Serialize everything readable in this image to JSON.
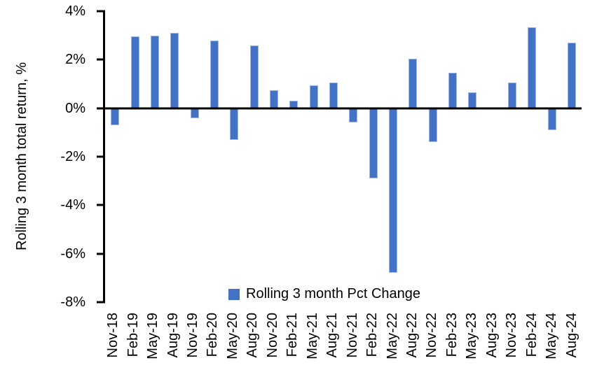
{
  "chart_data": {
    "type": "bar",
    "title": "",
    "xlabel": "",
    "ylabel": "Rolling 3 month total return, %",
    "categories": [
      "Nov-18",
      "Feb-19",
      "May-19",
      "Aug-19",
      "Nov-19",
      "Feb-20",
      "May-20",
      "Aug-20",
      "Nov-20",
      "Feb-21",
      "May-21",
      "Aug-21",
      "Nov-21",
      "Feb-22",
      "May-22",
      "Aug-22",
      "Nov-22",
      "Feb-23",
      "May-23",
      "Aug-23",
      "Nov-23",
      "Feb-24",
      "May-24",
      "Aug-24"
    ],
    "values": [
      -0.7,
      2.95,
      3.0,
      3.1,
      -0.4,
      2.8,
      -1.3,
      2.6,
      0.75,
      0.3,
      0.95,
      1.05,
      -0.6,
      -2.9,
      -6.8,
      2.05,
      -1.4,
      1.45,
      0.65,
      0.0,
      1.05,
      3.35,
      -0.9,
      2.7
    ],
    "ylim": [
      -8,
      4
    ],
    "yticks": [
      {
        "label": "4%",
        "value": 4
      },
      {
        "label": "2%",
        "value": 2
      },
      {
        "label": "0%",
        "value": 0
      },
      {
        "label": "-2%",
        "value": -2
      },
      {
        "label": "-4%",
        "value": -4
      },
      {
        "label": "-6%",
        "value": -6
      },
      {
        "label": "-8%",
        "value": -8
      }
    ],
    "grid": false,
    "legend": {
      "label": "Rolling 3 month Pct Change",
      "position": "bottom-center-inside"
    },
    "bar_color": "#4472C4",
    "axis_color": "#000000",
    "background_color": "#FFFFFF"
  }
}
